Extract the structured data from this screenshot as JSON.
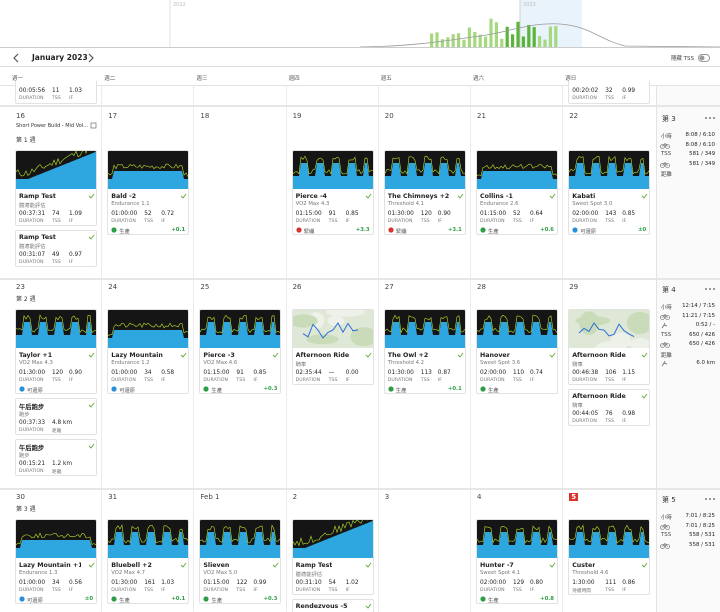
{
  "timeline": {
    "years": [
      "2022",
      "2023"
    ]
  },
  "header": {
    "month": "January 2023",
    "hide_tss": "隱藏 TSS"
  },
  "labels": {
    "duration": "DURATION",
    "tss": "TSS",
    "if": "IF",
    "distance": "距離"
  },
  "weekdays": [
    "週一",
    "週二",
    "週三",
    "週四",
    "週五",
    "週六",
    "週日"
  ],
  "previous_week": {
    "days": [
      {
        "duration": "00:05:56",
        "tss": "11",
        "if": "1.03"
      },
      null,
      null,
      null,
      null,
      null,
      {
        "duration": "00:20:02",
        "tss": "32",
        "if": "0.99"
      }
    ]
  },
  "weeks": [
    {
      "days": [
        {
          "date": "16",
          "note": "Short Power Build - Mid Vol...",
          "week_label": "第 1 週",
          "workouts": [
            {
              "name": "Ramp Test",
              "subtitle": "體適能評估",
              "duration": "00:37:31",
              "tss": "74",
              "if": "1.09",
              "thumbnail": "ramp"
            },
            {
              "name": "Ramp Test",
              "subtitle": "體適能評估",
              "duration": "00:31:07",
              "tss": "49",
              "if": "0.97"
            }
          ]
        },
        {
          "date": "17",
          "workouts": [
            {
              "name": "Bald -2",
              "subtitle": "Endurance 1.1",
              "duration": "01:00:00",
              "tss": "52",
              "if": "0.72",
              "thumbnail": "steady",
              "status": "生產",
              "status_color": "#2e9e46",
              "delta": "+0.1"
            }
          ]
        },
        {
          "date": "18",
          "workouts": []
        },
        {
          "date": "19",
          "workouts": [
            {
              "name": "Pierce -4",
              "subtitle": "VO2 Max 4.3",
              "duration": "01:15:00",
              "tss": "91",
              "if": "0.85",
              "thumbnail": "intervals",
              "status": "緊繃",
              "status_color": "#d9342b",
              "delta": "+3.3"
            }
          ]
        },
        {
          "date": "20",
          "workouts": [
            {
              "name": "The Chimneys +2",
              "subtitle": "Threshold 4.1",
              "duration": "01:30:00",
              "tss": "120",
              "if": "0.90",
              "thumbnail": "intervals",
              "status": "緊繃",
              "status_color": "#d9342b",
              "delta": "+3.1"
            }
          ]
        },
        {
          "date": "21",
          "workouts": [
            {
              "name": "Collins -1",
              "subtitle": "Endurance 2.6",
              "duration": "01:15:00",
              "tss": "52",
              "if": "0.64",
              "thumbnail": "steady",
              "status": "生產",
              "status_color": "#2e9e46",
              "delta": "+0.6"
            }
          ]
        },
        {
          "date": "22",
          "workouts": [
            {
              "name": "Kabati",
              "subtitle": "Sweet Spot 3.0",
              "duration": "02:00:00",
              "tss": "143",
              "if": "0.85",
              "thumbnail": "intervals",
              "status": "可還原",
              "status_color": "#2a8fd8",
              "delta": "±0"
            }
          ]
        }
      ],
      "summary": {
        "title": "第 3",
        "rows": [
          {
            "label": "小時",
            "value": "8:08 / 6:10"
          },
          {
            "icon": "bike",
            "value": "8:08 / 6:10"
          },
          {
            "label": "TSS",
            "value": "581 / 349"
          },
          {
            "icon": "bike",
            "value": "581 / 349"
          },
          {
            "label": "距離"
          }
        ]
      }
    },
    {
      "days": [
        {
          "date": "23",
          "week_label": "第 2 週",
          "workouts": [
            {
              "name": "Taylor +1",
              "subtitle": "VO2 Max 4.3",
              "duration": "01:30:00",
              "tss": "120",
              "if": "0.90",
              "thumbnail": "intervals",
              "status": "可還原",
              "status_color": "#2a8fd8"
            },
            {
              "name": "午后跑步",
              "subtitle": "跑步",
              "duration": "00:37:33",
              "distance": "4.8 km"
            },
            {
              "name": "午后跑步",
              "subtitle": "跑步",
              "duration": "00:15:21",
              "distance": "1.2 km"
            }
          ]
        },
        {
          "date": "24",
          "workouts": [
            {
              "name": "Lazy Mountain",
              "subtitle": "Endurance 1.2",
              "duration": "01:00:00",
              "tss": "34",
              "if": "0.58",
              "thumbnail": "steady",
              "status": "可還原",
              "status_color": "#2a8fd8"
            }
          ]
        },
        {
          "date": "25",
          "workouts": [
            {
              "name": "Pierce -3",
              "subtitle": "VO2 Max 4.6",
              "duration": "01:15:00",
              "tss": "91",
              "if": "0.85",
              "thumbnail": "intervals",
              "status": "生產",
              "status_color": "#2e9e46",
              "delta": "+0.3"
            }
          ]
        },
        {
          "date": "26",
          "workouts": [
            {
              "name": "Afternoon Ride",
              "subtitle": "騎車",
              "duration": "02:35:44",
              "tss": "—",
              "if": "0.00",
              "thumbnail": "map"
            }
          ]
        },
        {
          "date": "27",
          "workouts": [
            {
              "name": "The Owl +2",
              "subtitle": "Threshold 4.2",
              "duration": "01:30:00",
              "tss": "113",
              "if": "0.87",
              "thumbnail": "intervals",
              "status": "生產",
              "status_color": "#2e9e46",
              "delta": "+0.1"
            }
          ]
        },
        {
          "date": "28",
          "workouts": [
            {
              "name": "Hanover",
              "subtitle": "Sweet Spot 3.6",
              "duration": "02:00:00",
              "tss": "110",
              "if": "0.74",
              "thumbnail": "intervals",
              "status": "生產",
              "status_color": "#2e9e46"
            }
          ]
        },
        {
          "date": "29",
          "workouts": [
            {
              "name": "Afternoon Ride",
              "subtitle": "騎車",
              "duration": "00:46:38",
              "tss": "106",
              "if": "1.15",
              "thumbnail": "map"
            },
            {
              "name": "Afternoon Ride",
              "subtitle": "騎車",
              "duration": "00:44:05",
              "tss": "76",
              "if": "0.98"
            }
          ]
        }
      ],
      "summary": {
        "title": "第 4",
        "rows": [
          {
            "label": "小時",
            "value": "12:14 / 7:15"
          },
          {
            "icon": "bike",
            "value": "11:21 / 7:15"
          },
          {
            "icon": "run",
            "value": "0:52 / -"
          },
          {
            "label": "TSS",
            "value": "650 / 426"
          },
          {
            "icon": "bike",
            "value": "650 / 426"
          },
          {
            "label": "距離"
          },
          {
            "icon": "run",
            "value": "6.0 km"
          }
        ]
      }
    },
    {
      "days": [
        {
          "date": "30",
          "week_label": "第 3 週",
          "workouts": [
            {
              "name": "Lazy Mountain +1",
              "subtitle": "Endurance 1.3",
              "duration": "01:00:00",
              "tss": "34",
              "if": "0.56",
              "thumbnail": "steady",
              "status": "可還原",
              "status_color": "#2a8fd8",
              "delta": "±0"
            }
          ]
        },
        {
          "date": "31",
          "workouts": [
            {
              "name": "Bluebell +2",
              "subtitle": "VO2 Max 4.7",
              "duration": "01:30:00",
              "tss": "161",
              "if": "1.03",
              "thumbnail": "intervals",
              "status": "生產",
              "status_color": "#2e9e46",
              "delta": "+0.1"
            }
          ]
        },
        {
          "date": "Feb 1",
          "workouts": [
            {
              "name": "Slieven",
              "subtitle": "VO2 Max 5.0",
              "duration": "01:15:00",
              "tss": "122",
              "if": "0.99",
              "thumbnail": "intervals",
              "status": "生產",
              "status_color": "#2e9e46",
              "delta": "+0.3"
            }
          ]
        },
        {
          "date": "2",
          "workouts": [
            {
              "name": "Ramp Test",
              "subtitle": "體適能評估",
              "duration": "00:31:10",
              "tss": "54",
              "if": "1.02",
              "thumbnail": "ramp"
            },
            {
              "name": "Rendezvous -5"
            }
          ]
        },
        {
          "date": "3",
          "workouts": []
        },
        {
          "date": "4",
          "workouts": [
            {
              "name": "Hunter -7",
              "subtitle": "Sweet Spot 4.1",
              "duration": "02:00:00",
              "tss": "129",
              "if": "0.80",
              "thumbnail": "intervals",
              "status": "生產",
              "status_color": "#2e9e46",
              "delta": "+0.8"
            }
          ]
        },
        {
          "date": "5",
          "today": true,
          "workouts": [
            {
              "name": "Custer",
              "subtitle": "Threshold 4.6",
              "duration": "1:30:00",
              "tss": "111",
              "if": "0.86",
              "duration_label": "持續時間",
              "thumbnail": "intervals"
            }
          ]
        }
      ],
      "summary": {
        "title": "第 5",
        "rows": [
          {
            "label": "小時",
            "value": "7:01 / 8:25"
          },
          {
            "icon": "bike",
            "value": "7:01 / 8:25"
          },
          {
            "label": "TSS",
            "value": "558 / 531"
          },
          {
            "icon": "bike",
            "value": "558 / 531"
          }
        ]
      }
    }
  ]
}
